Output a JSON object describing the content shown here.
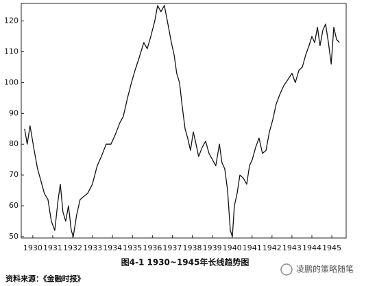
{
  "chart_data": {
    "type": "line",
    "caption": "图4-1   1930~1945年长线趋势图",
    "source": "资料来源：《金融时报》",
    "watermark": "凌鹏的策略随笔",
    "color": "#111111",
    "x": [
      1929.59,
      1929.72,
      1929.86,
      1930.07,
      1930.24,
      1930.41,
      1930.58,
      1930.76,
      1930.93,
      1931.1,
      1931.27,
      1931.38,
      1931.51,
      1931.65,
      1931.79,
      1931.93,
      1932.03,
      1932.2,
      1932.37,
      1932.55,
      1932.75,
      1932.99,
      1933.23,
      1933.44,
      1933.68,
      1933.92,
      1934.13,
      1934.37,
      1934.54,
      1934.75,
      1934.95,
      1935.13,
      1935.33,
      1935.57,
      1935.74,
      1935.92,
      1936.12,
      1936.26,
      1936.43,
      1936.6,
      1936.78,
      1936.95,
      1937.09,
      1937.22,
      1937.36,
      1937.5,
      1937.64,
      1937.77,
      1937.91,
      1938.05,
      1938.19,
      1938.32,
      1938.5,
      1938.67,
      1938.84,
      1939.01,
      1939.18,
      1939.36,
      1939.49,
      1939.63,
      1939.77,
      1939.91,
      1940.01,
      1940.11,
      1940.25,
      1940.39,
      1940.56,
      1940.73,
      1940.87,
      1941.01,
      1941.18,
      1941.35,
      1941.52,
      1941.7,
      1941.87,
      1942.04,
      1942.21,
      1942.38,
      1942.59,
      1942.8,
      1943.0,
      1943.17,
      1943.35,
      1943.52,
      1943.69,
      1943.86,
      1944.0,
      1944.14,
      1944.28,
      1944.41,
      1944.55,
      1944.69,
      1944.83,
      1944.97,
      1945.1,
      1945.24,
      1945.38
    ],
    "values": [
      85,
      80,
      86,
      78,
      72,
      68,
      64,
      62,
      55,
      52,
      62,
      67,
      58,
      55,
      60,
      52,
      50,
      57,
      62,
      63,
      64,
      67,
      73,
      76,
      80,
      80,
      83,
      87,
      89,
      95,
      100,
      104,
      108,
      113,
      111,
      115,
      120,
      125,
      123,
      125,
      119,
      113,
      109,
      103,
      100,
      92,
      85,
      82,
      78,
      84,
      80,
      76,
      79,
      81,
      77,
      75,
      73,
      80,
      74,
      72,
      65,
      52,
      50,
      60,
      64,
      70,
      69,
      67,
      73,
      75,
      79,
      82,
      77,
      78,
      84,
      88,
      93,
      96,
      99,
      101,
      103,
      100,
      104,
      105,
      109,
      112,
      115,
      113,
      118,
      112,
      117,
      119,
      113,
      106,
      118,
      114,
      113
    ],
    "xlim": [
      1929.42,
      1945.72
    ],
    "xticks": [
      1930,
      1931,
      1932,
      1933,
      1934,
      1935,
      1936,
      1937,
      1938,
      1939,
      1940,
      1941,
      1942,
      1943,
      1944,
      1945
    ],
    "ylim": [
      49.55,
      125.7
    ],
    "yticks": [
      50,
      60,
      70,
      80,
      90,
      100,
      110,
      120
    ]
  }
}
